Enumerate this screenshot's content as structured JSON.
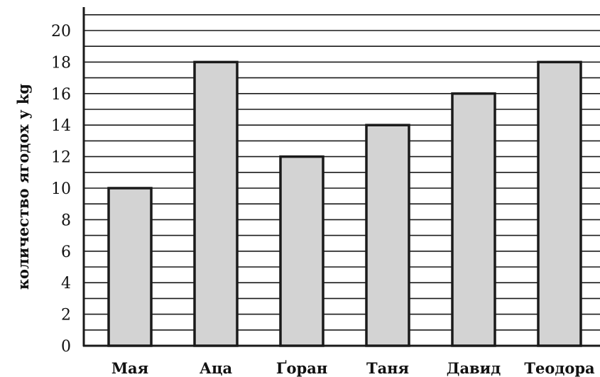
{
  "chart_data": {
    "type": "bar",
    "title": "",
    "xlabel": "",
    "ylabel": "количество ягодох у kg",
    "categories": [
      "Мая",
      "Аца",
      "Ґоран",
      "Таня",
      "Давид",
      "Теодора"
    ],
    "values": [
      10,
      18,
      12,
      14,
      16,
      18
    ],
    "ylim": [
      0,
      21
    ],
    "yticks": [
      0,
      2,
      4,
      6,
      8,
      10,
      12,
      14,
      16,
      18,
      20
    ],
    "grid": "horizontal lines every 1 unit",
    "legend": "none",
    "colors": {
      "bar_fill": "#d3d3d3",
      "bar_stroke": "#1a1a1a",
      "grid": "#1a1a1a",
      "axis": "#1a1a1a"
    }
  }
}
